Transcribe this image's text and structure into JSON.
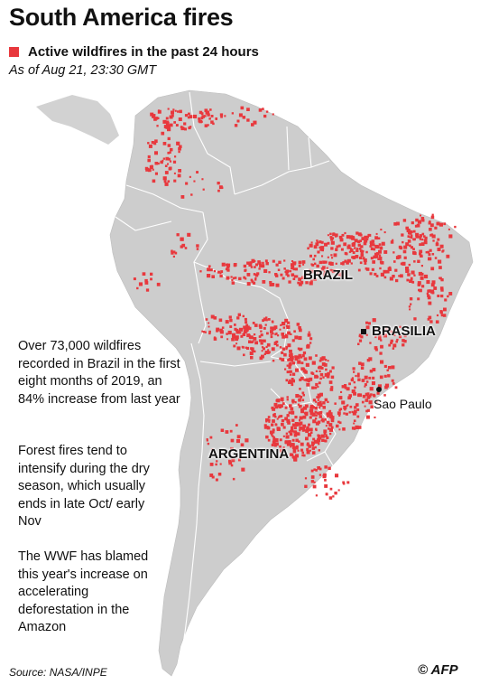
{
  "title": "South America fires",
  "legend": {
    "label": "Active wildfires in the past 24 hours",
    "color": "#e8383d",
    "icon": "square-marker"
  },
  "as_of": "As of Aug 21, 23:30 GMT",
  "notes": [
    "Over 73,000 wildfires recorded in Brazil in the first eight months of 2019, an 84% increase from last year",
    "Forest fires tend to intensify during the dry season, which usually ends in late Oct/ early Nov",
    "The WWF has blamed this year's increase on accelerating deforestation in the Amazon"
  ],
  "labels": {
    "brazil": "BRAZIL",
    "brasilia": "BRASILIA",
    "argentina": "ARGENTINA",
    "sao_paulo": "Sao Paulo"
  },
  "source": "Source: NASA/INPE",
  "credit": "© AFP",
  "colors": {
    "land": "#cfcfcf",
    "borders": "#ffffff",
    "fire": "#e8383d",
    "ocean": "#ffffff"
  }
}
